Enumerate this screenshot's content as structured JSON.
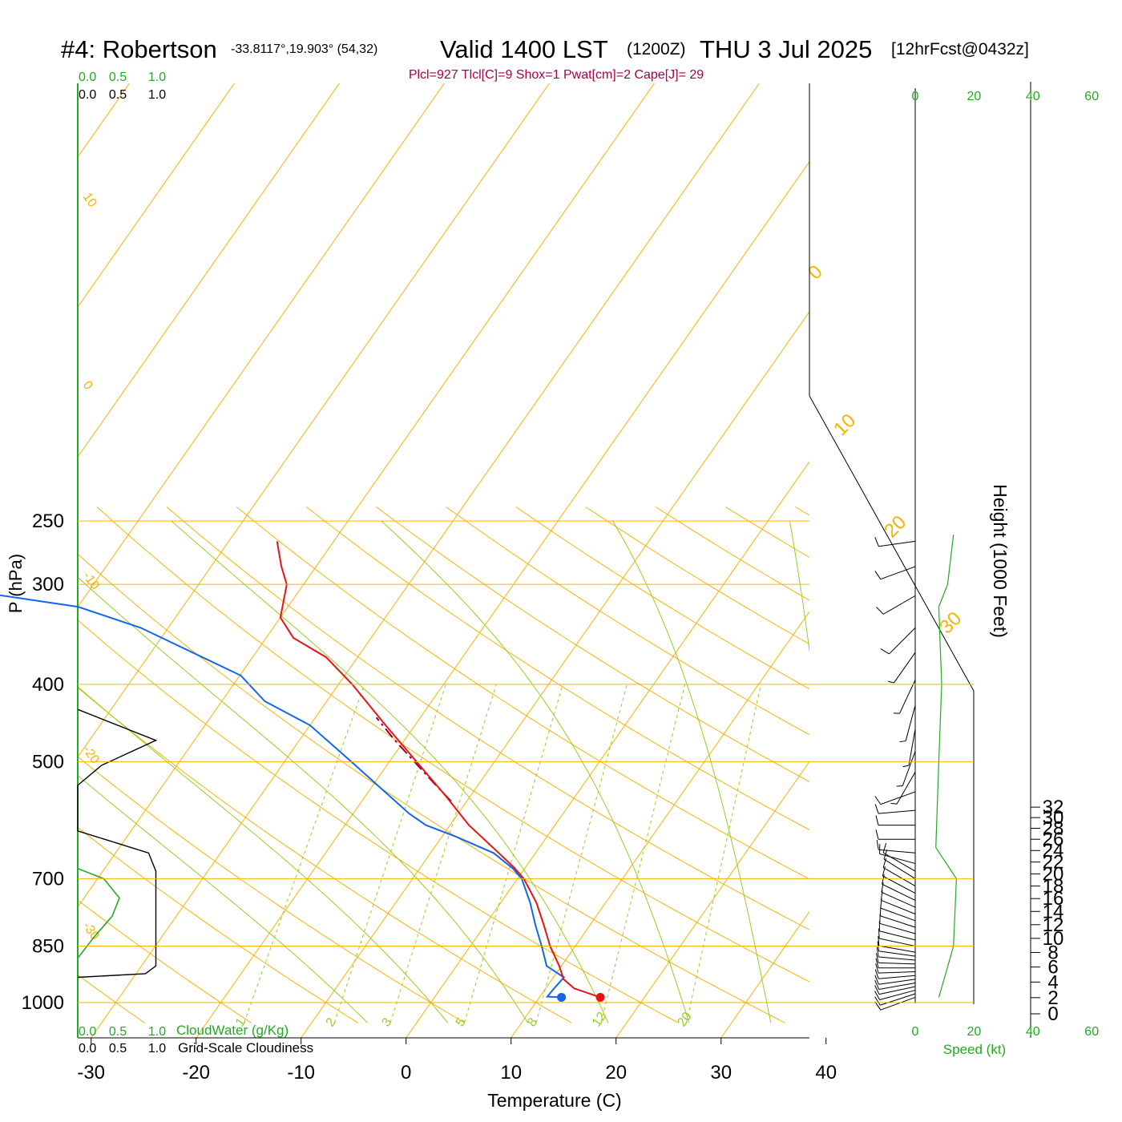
{
  "header": {
    "station": "#4: Robertson",
    "location": "-33.8117°,19.903° (54,32)",
    "valid": "Valid 1400 LST",
    "zulu": "(1200Z)",
    "date": "THU 3 Jul 2025",
    "forecast": "[12hrFcst@0432z]",
    "indices": "Plcl=927 Tlcl[C]=9 Shox=1 Pwat[cm]=2 Cape[J]= 29"
  },
  "colors": {
    "temperature": "#ee1111",
    "dewpoint": "#1166ee",
    "parcel": "#880044",
    "isotherm_isobar": "#f5b400",
    "dry_adiabat": "#f5b400",
    "moist_adiabat": "#99cc22",
    "mixing_ratio": "#99cc22",
    "wind_speed": "#22aa22",
    "cloud_water": "#22aa22",
    "indices_text": "#aa0044"
  },
  "chart_data": {
    "type": "line",
    "subtype": "skew-T log-P sounding",
    "xlabel": "Temperature (C)",
    "ylabel": "P (hPa)",
    "right_label": "Height (1000 Feet)",
    "x_ticks": [
      -30,
      -20,
      -10,
      0,
      10,
      20,
      30,
      40
    ],
    "p_ticks": [
      250,
      300,
      400,
      500,
      700,
      850,
      1000
    ],
    "height_ticks": [
      0,
      2,
      4,
      6,
      8,
      10,
      12,
      14,
      16,
      18,
      20,
      22,
      24,
      26,
      28,
      30,
      32
    ],
    "top_scale_labels_green": [
      "0.0",
      "0.5",
      "1.0"
    ],
    "top_scale_labels_black": [
      "0.0",
      "0.5",
      "1.0"
    ],
    "bottom_cloudwater_labels": [
      "0.0",
      "0.5",
      "1.0"
    ],
    "bottom_cloudwater_title": "CloudWater (g/Kg)",
    "bottom_cloud_labels": [
      "0.0",
      "0.5",
      "1.0"
    ],
    "bottom_cloud_title": "Grid-Scale Cloudiness",
    "speed_ticks": [
      "0",
      "20",
      "40",
      "60"
    ],
    "speed_label": "Speed (kt)",
    "mixing_ratio_labels": [
      "1",
      "2",
      "3",
      "5",
      "8",
      "12",
      "20"
    ],
    "isotherm_labels_left": [
      "10",
      "0",
      "-10",
      "-20",
      "-30"
    ],
    "isotherm_labels_right": [
      "0",
      "10",
      "20",
      "30"
    ],
    "temperature": [
      {
        "p": 985,
        "t": 15.8
      },
      {
        "p": 960,
        "t": 12.7
      },
      {
        "p": 935,
        "t": 11.1
      },
      {
        "p": 900,
        "t": 9.8
      },
      {
        "p": 850,
        "t": 7.6
      },
      {
        "p": 800,
        "t": 5.6
      },
      {
        "p": 750,
        "t": 3.4
      },
      {
        "p": 700,
        "t": 0.6
      },
      {
        "p": 680,
        "t": -0.9
      },
      {
        "p": 650,
        "t": -3.5
      },
      {
        "p": 600,
        "t": -8.2
      },
      {
        "p": 550,
        "t": -12.5
      },
      {
        "p": 500,
        "t": -17.4
      },
      {
        "p": 450,
        "t": -22.8
      },
      {
        "p": 400,
        "t": -28.7
      },
      {
        "p": 370,
        "t": -33.0
      },
      {
        "p": 350,
        "t": -37.4
      },
      {
        "p": 330,
        "t": -40.0
      },
      {
        "p": 300,
        "t": -41.6
      },
      {
        "p": 285,
        "t": -43.3
      },
      {
        "p": 265,
        "t": -45.4
      }
    ],
    "dewpoint": [
      {
        "p": 985,
        "t": 12.1
      },
      {
        "p": 983,
        "t": 10.7
      },
      {
        "p": 960,
        "t": 10.8
      },
      {
        "p": 930,
        "t": 11.0
      },
      {
        "p": 900,
        "t": 8.6
      },
      {
        "p": 850,
        "t": 6.8
      },
      {
        "p": 800,
        "t": 4.8
      },
      {
        "p": 750,
        "t": 2.8
      },
      {
        "p": 700,
        "t": 0.4
      },
      {
        "p": 680,
        "t": -1.1
      },
      {
        "p": 650,
        "t": -4.0
      },
      {
        "p": 620,
        "t": -8.7
      },
      {
        "p": 600,
        "t": -12.3
      },
      {
        "p": 580,
        "t": -14.7
      },
      {
        "p": 500,
        "t": -23.6
      },
      {
        "p": 450,
        "t": -30.0
      },
      {
        "p": 420,
        "t": -35.9
      },
      {
        "p": 390,
        "t": -39.9
      },
      {
        "p": 340,
        "t": -52.6
      },
      {
        "p": 320,
        "t": -60.0
      },
      {
        "p": 300,
        "t": -75.9
      }
    ],
    "parcel": [
      {
        "p": 560,
        "t": -11.5
      },
      {
        "p": 530,
        "t": -14.5
      },
      {
        "p": 500,
        "t": -17.6
      },
      {
        "p": 470,
        "t": -20.9
      },
      {
        "p": 440,
        "t": -24.2
      }
    ],
    "wind_speed_kt": [
      {
        "p": 985,
        "s": 8
      },
      {
        "p": 930,
        "s": 10
      },
      {
        "p": 850,
        "s": 13
      },
      {
        "p": 700,
        "s": 14
      },
      {
        "p": 640,
        "s": 7
      },
      {
        "p": 500,
        "s": 8
      },
      {
        "p": 400,
        "s": 9
      },
      {
        "p": 320,
        "s": 8
      },
      {
        "p": 300,
        "s": 11
      },
      {
        "p": 260,
        "s": 13
      }
    ],
    "cloud_water": [
      {
        "p": 680,
        "v": 0.0
      },
      {
        "p": 700,
        "v": 0.25
      },
      {
        "p": 740,
        "v": 0.4
      },
      {
        "p": 780,
        "v": 0.33
      },
      {
        "p": 830,
        "v": 0.15
      },
      {
        "p": 880,
        "v": 0.0
      }
    ],
    "cloudiness": [
      {
        "p": 430,
        "v": 0.0
      },
      {
        "p": 470,
        "v": 0.75
      },
      {
        "p": 505,
        "v": 0.23
      },
      {
        "p": 535,
        "v": 0.0
      },
      {
        "p": 610,
        "v": 0.0
      },
      {
        "p": 650,
        "v": 0.68
      },
      {
        "p": 685,
        "v": 0.75
      },
      {
        "p": 900,
        "v": 0.75
      },
      {
        "p": 920,
        "v": 0.65
      },
      {
        "p": 930,
        "v": 0.0
      }
    ],
    "wind_barbs": [
      {
        "p": 985,
        "dir": 250,
        "spd": 10
      },
      {
        "p": 975,
        "dir": 252,
        "spd": 10
      },
      {
        "p": 965,
        "dir": 255,
        "spd": 10
      },
      {
        "p": 955,
        "dir": 258,
        "spd": 10
      },
      {
        "p": 945,
        "dir": 260,
        "spd": 10
      },
      {
        "p": 935,
        "dir": 262,
        "spd": 10
      },
      {
        "p": 925,
        "dir": 265,
        "spd": 10
      },
      {
        "p": 915,
        "dir": 268,
        "spd": 10
      },
      {
        "p": 905,
        "dir": 270,
        "spd": 10
      },
      {
        "p": 895,
        "dir": 272,
        "spd": 10
      },
      {
        "p": 885,
        "dir": 275,
        "spd": 10
      },
      {
        "p": 875,
        "dir": 278,
        "spd": 10
      },
      {
        "p": 865,
        "dir": 280,
        "spd": 10
      },
      {
        "p": 850,
        "dir": 282,
        "spd": 10
      },
      {
        "p": 835,
        "dir": 284,
        "spd": 10
      },
      {
        "p": 820,
        "dir": 286,
        "spd": 10
      },
      {
        "p": 805,
        "dir": 288,
        "spd": 10
      },
      {
        "p": 790,
        "dir": 290,
        "spd": 10
      },
      {
        "p": 775,
        "dir": 292,
        "spd": 10
      },
      {
        "p": 760,
        "dir": 294,
        "spd": 10
      },
      {
        "p": 745,
        "dir": 296,
        "spd": 10
      },
      {
        "p": 730,
        "dir": 298,
        "spd": 10
      },
      {
        "p": 715,
        "dir": 300,
        "spd": 10
      },
      {
        "p": 700,
        "dir": 302,
        "spd": 10
      },
      {
        "p": 685,
        "dir": 300,
        "spd": 10
      },
      {
        "p": 670,
        "dir": 285,
        "spd": 10
      },
      {
        "p": 650,
        "dir": 275,
        "spd": 10
      },
      {
        "p": 625,
        "dir": 270,
        "spd": 10
      },
      {
        "p": 600,
        "dir": 270,
        "spd": 10
      },
      {
        "p": 575,
        "dir": 265,
        "spd": 10
      },
      {
        "p": 545,
        "dir": 250,
        "spd": 10
      },
      {
        "p": 515,
        "dir": 210,
        "spd": 5
      },
      {
        "p": 485,
        "dir": 200,
        "spd": 5
      },
      {
        "p": 455,
        "dir": 190,
        "spd": 5
      },
      {
        "p": 425,
        "dir": 195,
        "spd": 5
      },
      {
        "p": 395,
        "dir": 205,
        "spd": 5
      },
      {
        "p": 365,
        "dir": 215,
        "spd": 5
      },
      {
        "p": 340,
        "dir": 225,
        "spd": 10
      },
      {
        "p": 310,
        "dir": 240,
        "spd": 10
      },
      {
        "p": 285,
        "dir": 250,
        "spd": 10
      },
      {
        "p": 265,
        "dir": 262,
        "spd": 10
      }
    ]
  }
}
